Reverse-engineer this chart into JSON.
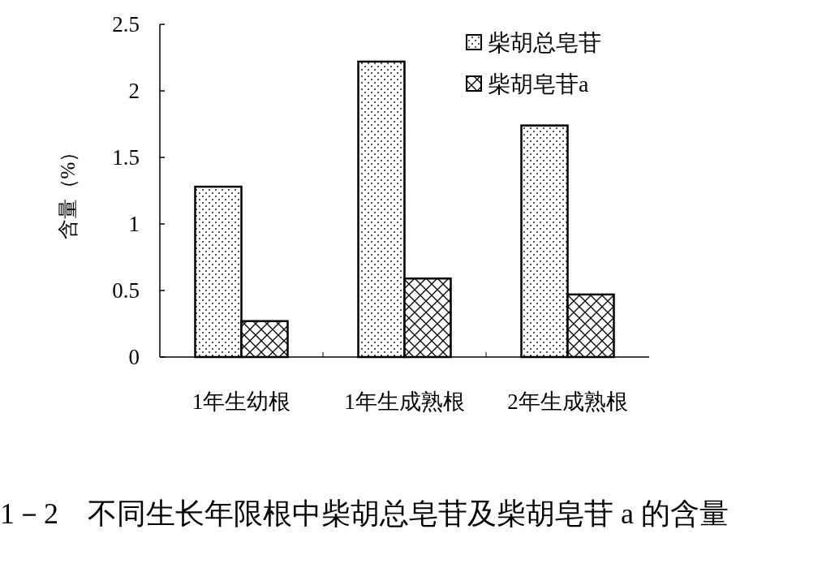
{
  "chart_data": {
    "type": "bar",
    "ylabel": "含量（%）",
    "categories": [
      "1年生幼根",
      "1年生成熟根",
      "2年生成熟根"
    ],
    "series": [
      {
        "name": "柴胡总皂苷",
        "color": "#000000",
        "values": [
          1.28,
          2.22,
          1.74
        ]
      },
      {
        "name": "柴胡皂苷a",
        "color": "#000000",
        "values": [
          0.27,
          0.59,
          0.47
        ]
      }
    ],
    "ylim": [
      0,
      2.5
    ],
    "yticks": [
      0,
      0.5,
      1,
      1.5,
      2,
      2.5
    ],
    "grid": false,
    "legend": "top right",
    "annotations": [
      "1－2　不同生长年限根中柴胡总皂苷及柴胡皂苷 a 的含量"
    ]
  }
}
